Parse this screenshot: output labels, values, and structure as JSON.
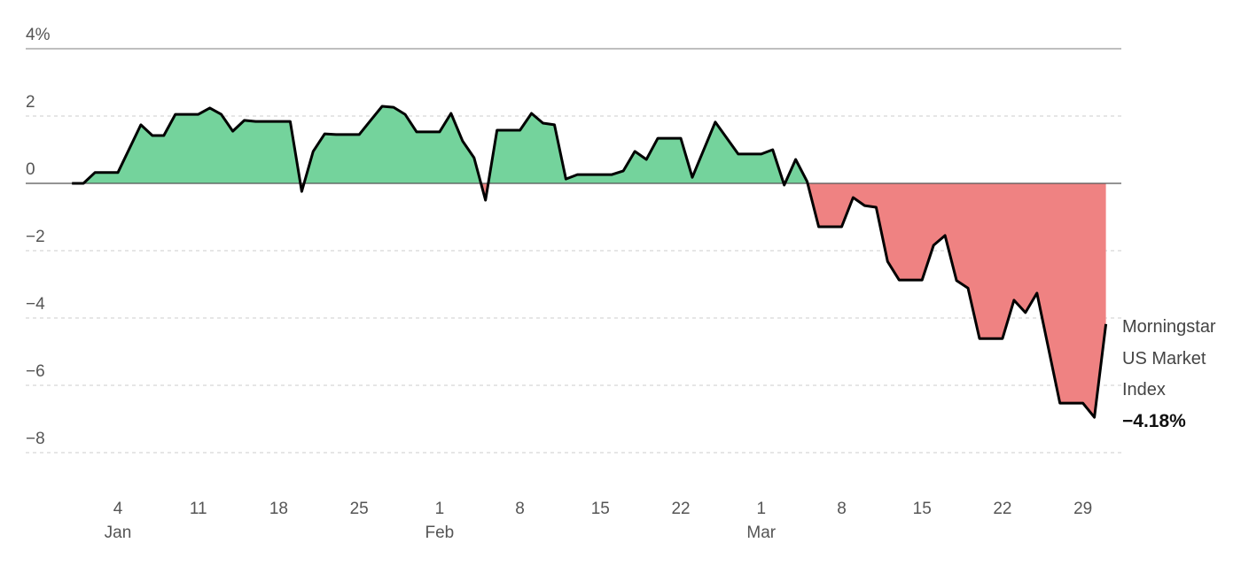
{
  "chart_data": {
    "type": "area",
    "title": "",
    "xlabel": "",
    "ylabel": "",
    "ylim": [
      -8,
      4
    ],
    "y_ticks": [
      "4%",
      "2",
      "0",
      "−2",
      "−4",
      "−6",
      "−8"
    ],
    "y_tick_values": [
      4,
      2,
      0,
      -2,
      -4,
      -6,
      -8
    ],
    "x_ticks": [
      {
        "date": "01-04",
        "day": "4",
        "month": "Jan"
      },
      {
        "date": "01-11",
        "day": "11",
        "month": ""
      },
      {
        "date": "01-18",
        "day": "18",
        "month": ""
      },
      {
        "date": "01-25",
        "day": "25",
        "month": ""
      },
      {
        "date": "02-01",
        "day": "1",
        "month": "Feb"
      },
      {
        "date": "02-08",
        "day": "8",
        "month": ""
      },
      {
        "date": "02-15",
        "day": "15",
        "month": ""
      },
      {
        "date": "02-22",
        "day": "22",
        "month": ""
      },
      {
        "date": "03-01",
        "day": "1",
        "month": "Mar"
      },
      {
        "date": "03-08",
        "day": "8",
        "month": ""
      },
      {
        "date": "03-15",
        "day": "15",
        "month": ""
      },
      {
        "date": "03-22",
        "day": "22",
        "month": ""
      },
      {
        "date": "03-29",
        "day": "29",
        "month": ""
      }
    ],
    "grid": true,
    "colors": {
      "positive": "#74d39c",
      "negative": "#ef8282",
      "line": "#000000",
      "grid": "#cccccc",
      "zero": "#555555"
    },
    "series": [
      {
        "name": "Morningstar US Market Index",
        "end_label": "−4.18%",
        "points": [
          [
            "12-31",
            0.0
          ],
          [
            "01-01",
            0.0
          ],
          [
            "01-02",
            0.32
          ],
          [
            "01-04",
            0.32
          ],
          [
            "01-06",
            1.74
          ],
          [
            "01-07",
            1.42
          ],
          [
            "01-08",
            1.42
          ],
          [
            "01-09",
            2.05
          ],
          [
            "01-11",
            2.05
          ],
          [
            "01-12",
            2.24
          ],
          [
            "01-13",
            2.05
          ],
          [
            "01-14",
            1.55
          ],
          [
            "01-15",
            1.87
          ],
          [
            "01-16",
            1.84
          ],
          [
            "01-19",
            1.84
          ],
          [
            "01-20",
            -0.24
          ],
          [
            "01-21",
            0.95
          ],
          [
            "01-22",
            1.47
          ],
          [
            "01-23",
            1.45
          ],
          [
            "01-25",
            1.45
          ],
          [
            "01-26",
            1.87
          ],
          [
            "01-27",
            2.29
          ],
          [
            "01-28",
            2.26
          ],
          [
            "01-29",
            2.05
          ],
          [
            "01-30",
            1.53
          ],
          [
            "02-01",
            1.53
          ],
          [
            "02-02",
            2.08
          ],
          [
            "02-03",
            1.26
          ],
          [
            "02-04",
            0.76
          ],
          [
            "02-05",
            -0.5
          ],
          [
            "02-06",
            1.58
          ],
          [
            "02-08",
            1.58
          ],
          [
            "02-09",
            2.08
          ],
          [
            "02-10",
            1.79
          ],
          [
            "02-11",
            1.74
          ],
          [
            "02-12",
            0.13
          ],
          [
            "02-13",
            0.26
          ],
          [
            "02-16",
            0.26
          ],
          [
            "02-17",
            0.37
          ],
          [
            "02-18",
            0.95
          ],
          [
            "02-19",
            0.71
          ],
          [
            "02-20",
            1.34
          ],
          [
            "02-22",
            1.34
          ],
          [
            "02-23",
            0.18
          ],
          [
            "02-25",
            1.82
          ],
          [
            "02-27",
            0.87
          ],
          [
            "03-01",
            0.87
          ],
          [
            "03-02",
            1.0
          ],
          [
            "03-03",
            -0.05
          ],
          [
            "03-04",
            0.71
          ],
          [
            "03-05",
            0.05
          ],
          [
            "03-06",
            -1.29
          ],
          [
            "03-08",
            -1.29
          ],
          [
            "03-09",
            -0.42
          ],
          [
            "03-10",
            -0.66
          ],
          [
            "03-11",
            -0.71
          ],
          [
            "03-12",
            -2.32
          ],
          [
            "03-13",
            -2.87
          ],
          [
            "03-15",
            -2.87
          ],
          [
            "03-16",
            -1.84
          ],
          [
            "03-17",
            -1.55
          ],
          [
            "03-18",
            -2.89
          ],
          [
            "03-19",
            -3.11
          ],
          [
            "03-20",
            -4.61
          ],
          [
            "03-22",
            -4.61
          ],
          [
            "03-23",
            -3.47
          ],
          [
            "03-24",
            -3.84
          ],
          [
            "03-25",
            -3.26
          ],
          [
            "03-27",
            -6.53
          ],
          [
            "03-29",
            -6.53
          ],
          [
            "03-30",
            -6.95
          ],
          [
            "03-31",
            -4.18
          ]
        ]
      }
    ],
    "annotation": {
      "line1": "Morningstar",
      "line2": "US Market",
      "line3": "Index",
      "value": "−4.18%"
    }
  }
}
